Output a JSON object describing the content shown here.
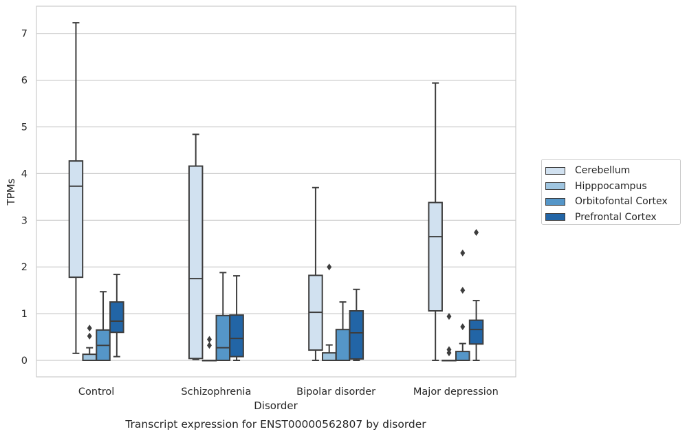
{
  "chart_data": {
    "type": "box",
    "title": "Transcript expression for ENST00000562807 by disorder",
    "xlabel": "Disorder",
    "ylabel": "TPMs",
    "ylim": [
      -0.35,
      7.6
    ],
    "yticks": [
      0,
      1,
      2,
      3,
      4,
      5,
      6,
      7
    ],
    "grid": true,
    "legend_position": "right",
    "categories": [
      "Control",
      "Schizophrenia",
      "Bipolar disorder",
      "Major depression"
    ],
    "series": [
      {
        "name": "Cerebellum",
        "color": "#d1e1f0",
        "boxes": [
          {
            "whislo": 0.15,
            "q1": 1.78,
            "med": 3.73,
            "q3": 4.27,
            "whishi": 7.23,
            "fliers": []
          },
          {
            "whislo": 0.02,
            "q1": 0.04,
            "med": 1.75,
            "q3": 4.16,
            "whishi": 4.84,
            "fliers": []
          },
          {
            "whislo": 0.0,
            "q1": 0.22,
            "med": 1.03,
            "q3": 1.82,
            "whishi": 3.7,
            "fliers": []
          },
          {
            "whislo": 0.0,
            "q1": 1.06,
            "med": 2.65,
            "q3": 3.38,
            "whishi": 5.94,
            "fliers": []
          }
        ]
      },
      {
        "name": "Hipppocampus",
        "color": "#9fc5e0",
        "boxes": [
          {
            "whislo": 0.0,
            "q1": 0.0,
            "med": 0.0,
            "q3": 0.13,
            "whishi": 0.27,
            "fliers": [
              0.52,
              0.69
            ]
          },
          {
            "whislo": 0.0,
            "q1": 0.0,
            "med": 0.0,
            "q3": 0.0,
            "whishi": 0.0,
            "fliers": [
              0.32,
              0.45
            ]
          },
          {
            "whislo": 0.0,
            "q1": 0.0,
            "med": 0.0,
            "q3": 0.16,
            "whishi": 0.33,
            "fliers": [
              2.0
            ]
          },
          {
            "whislo": 0.0,
            "q1": 0.0,
            "med": 0.0,
            "q3": 0.0,
            "whishi": 0.0,
            "fliers": [
              0.16,
              0.23,
              0.94
            ]
          }
        ]
      },
      {
        "name": "Orbitofontal Cortex",
        "color": "#5596c8",
        "boxes": [
          {
            "whislo": 0.0,
            "q1": 0.0,
            "med": 0.32,
            "q3": 0.65,
            "whishi": 1.47,
            "fliers": []
          },
          {
            "whislo": 0.0,
            "q1": 0.0,
            "med": 0.27,
            "q3": 0.96,
            "whishi": 1.88,
            "fliers": []
          },
          {
            "whislo": 0.0,
            "q1": 0.0,
            "med": 0.0,
            "q3": 0.66,
            "whishi": 1.25,
            "fliers": []
          },
          {
            "whislo": 0.0,
            "q1": 0.0,
            "med": 0.0,
            "q3": 0.19,
            "whishi": 0.36,
            "fliers": [
              0.72,
              1.5,
              2.3
            ]
          }
        ]
      },
      {
        "name": "Prefrontal Cortex",
        "color": "#2265a6",
        "boxes": [
          {
            "whislo": 0.08,
            "q1": 0.6,
            "med": 0.84,
            "q3": 1.25,
            "whishi": 1.84,
            "fliers": []
          },
          {
            "whislo": 0.0,
            "q1": 0.08,
            "med": 0.47,
            "q3": 0.97,
            "whishi": 1.81,
            "fliers": []
          },
          {
            "whislo": 0.0,
            "q1": 0.03,
            "med": 0.59,
            "q3": 1.06,
            "whishi": 1.52,
            "fliers": []
          },
          {
            "whislo": 0.0,
            "q1": 0.35,
            "med": 0.66,
            "q3": 0.86,
            "whishi": 1.28,
            "fliers": [
              2.74
            ]
          }
        ]
      }
    ]
  }
}
